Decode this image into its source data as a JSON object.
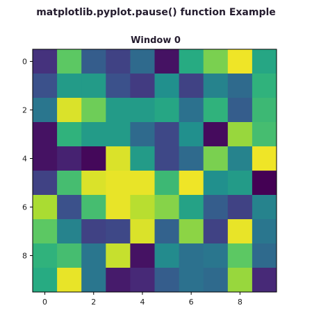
{
  "figure": {
    "suptitle": "matplotlib.pyplot.pause() function Example"
  },
  "chart_data": {
    "type": "heatmap",
    "title": "Window 0",
    "xlabel": "",
    "ylabel": "",
    "colormap": "viridis",
    "value_range": [
      0,
      1
    ],
    "x_ticks": [
      0,
      2,
      4,
      6,
      8
    ],
    "y_ticks": [
      0,
      2,
      4,
      6,
      8
    ],
    "x_tick_labels": [
      "0",
      "2",
      "4",
      "6",
      "8"
    ],
    "y_tick_labels": [
      "0",
      "2",
      "4",
      "6",
      "8"
    ],
    "xlim": [
      -0.5,
      9.5
    ],
    "ylim": [
      9.5,
      -0.5
    ],
    "values": [
      [
        0.15,
        0.75,
        0.3,
        0.2,
        0.35,
        0.05,
        0.62,
        0.8,
        0.98,
        0.6
      ],
      [
        0.25,
        0.55,
        0.55,
        0.25,
        0.18,
        0.5,
        0.2,
        0.45,
        0.35,
        0.65
      ],
      [
        0.4,
        0.95,
        0.78,
        0.55,
        0.55,
        0.6,
        0.38,
        0.65,
        0.3,
        0.68
      ],
      [
        0.05,
        0.65,
        0.55,
        0.55,
        0.35,
        0.22,
        0.5,
        0.03,
        0.85,
        0.7
      ],
      [
        0.05,
        0.1,
        0.02,
        0.95,
        0.55,
        0.22,
        0.35,
        0.8,
        0.45,
        0.98
      ],
      [
        0.2,
        0.7,
        0.95,
        0.97,
        0.97,
        0.68,
        0.98,
        0.5,
        0.55,
        0.0
      ],
      [
        0.88,
        0.25,
        0.7,
        0.97,
        0.9,
        0.82,
        0.58,
        0.3,
        0.2,
        0.45
      ],
      [
        0.75,
        0.45,
        0.2,
        0.22,
        0.95,
        0.32,
        0.83,
        0.2,
        0.97,
        0.4
      ],
      [
        0.65,
        0.7,
        0.4,
        0.92,
        0.05,
        0.48,
        0.38,
        0.4,
        0.75,
        0.35
      ],
      [
        0.62,
        0.97,
        0.4,
        0.08,
        0.12,
        0.3,
        0.38,
        0.35,
        0.85,
        0.12
      ]
    ]
  }
}
